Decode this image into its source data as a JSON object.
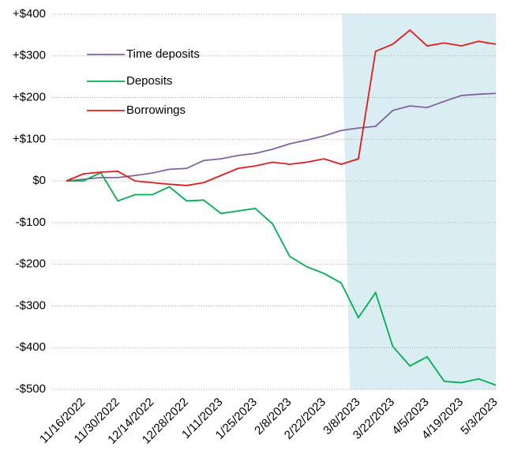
{
  "chart_data": {
    "type": "line",
    "categories": [
      null,
      "11/16/2022",
      null,
      "11/30/2022",
      null,
      "12/14/2022",
      null,
      "12/28/2022",
      null,
      "1/11/2023",
      null,
      "1/25/2023",
      null,
      "2/8/2023",
      null,
      "2/22/2023",
      null,
      "3/8/2023",
      null,
      "3/22/2023",
      null,
      "4/5/2023",
      null,
      "4/19/2023",
      null,
      "5/3/2023"
    ],
    "series": [
      {
        "name": "Time deposits",
        "color": "#8064a2",
        "values": [
          0,
          4,
          8,
          8,
          13,
          19,
          28,
          30,
          49,
          53,
          61,
          66,
          76,
          89,
          98,
          108,
          121,
          127,
          131,
          169,
          180,
          176,
          191,
          205,
          208,
          210
        ]
      },
      {
        "name": "Deposits",
        "color": "#00b050",
        "values": [
          0,
          0,
          20,
          -48,
          -33,
          -33,
          -14,
          -48,
          -46,
          -78,
          -72,
          -66,
          -103,
          -181,
          -206,
          -222,
          -245,
          -328,
          -268,
          -397,
          -444,
          -422,
          -481,
          -484,
          -475,
          -490
        ]
      },
      {
        "name": "Borrowings",
        "color": "#e41a1a",
        "values": [
          0,
          17,
          21,
          23,
          0,
          -4,
          -8,
          -11,
          -4,
          13,
          30,
          36,
          45,
          40,
          45,
          53,
          40,
          53,
          311,
          328,
          362,
          324,
          331,
          324,
          335,
          328
        ]
      }
    ],
    "ylim": [
      -500,
      400
    ],
    "yticks": [
      {
        "value": -500,
        "label": "-$500"
      },
      {
        "value": -400,
        "label": "-$400"
      },
      {
        "value": -300,
        "label": "-$300"
      },
      {
        "value": -200,
        "label": "-$200"
      },
      {
        "value": -100,
        "label": "-$100"
      },
      {
        "value": 0,
        "label": "$0"
      },
      {
        "value": 100,
        "label": "+$100"
      },
      {
        "value": 200,
        "label": "+$200"
      },
      {
        "value": 300,
        "label": "+$300"
      },
      {
        "value": 400,
        "label": "+$400"
      }
    ],
    "grid": true
  }
}
